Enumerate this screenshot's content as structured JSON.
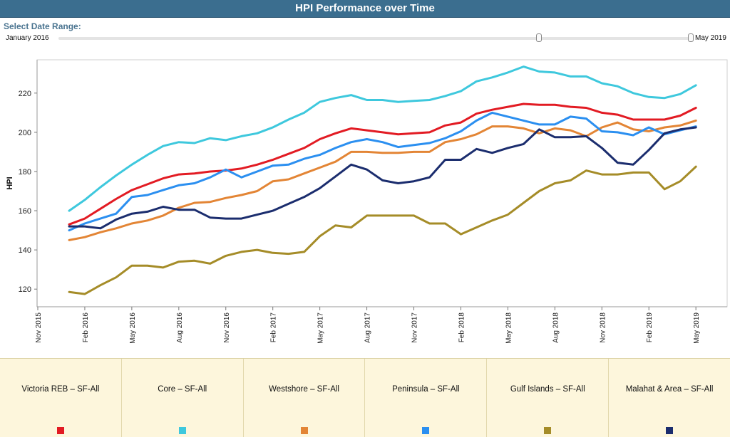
{
  "header": {
    "title": "HPI Performance over Time"
  },
  "range": {
    "label": "Select Date Range:",
    "start": "January 2016",
    "end": "May 2019",
    "selected_start_fraction": 0.76,
    "selected_end_fraction": 1.0
  },
  "chart_data": {
    "type": "line",
    "xlabel": "",
    "ylabel": "HPI",
    "ylim": [
      111,
      237
    ],
    "yticks": [
      120,
      140,
      160,
      180,
      200,
      220
    ],
    "grid": false,
    "xticks": [
      "Nov 2015",
      "Feb 2016",
      "May 2016",
      "Aug 2016",
      "Nov 2016",
      "Feb 2017",
      "May 2017",
      "Aug 2017",
      "Nov 2017",
      "Feb 2018",
      "May 2018",
      "Aug 2018",
      "Nov 2018",
      "Feb 2019",
      "May 2019"
    ],
    "x": [
      "Jan 2016",
      "Feb 2016",
      "Mar 2016",
      "Apr 2016",
      "May 2016",
      "Jun 2016",
      "Jul 2016",
      "Aug 2016",
      "Sep 2016",
      "Oct 2016",
      "Nov 2016",
      "Dec 2016",
      "Jan 2017",
      "Feb 2017",
      "Mar 2017",
      "Apr 2017",
      "May 2017",
      "Jun 2017",
      "Jul 2017",
      "Aug 2017",
      "Sep 2017",
      "Oct 2017",
      "Nov 2017",
      "Dec 2017",
      "Jan 2018",
      "Feb 2018",
      "Mar 2018",
      "Apr 2018",
      "May 2018",
      "Jun 2018",
      "Jul 2018",
      "Aug 2018",
      "Sep 2018",
      "Oct 2018",
      "Nov 2018",
      "Dec 2018",
      "Jan 2019",
      "Feb 2019",
      "Mar 2019",
      "Apr 2019",
      "May 2019"
    ],
    "series": [
      {
        "name": "Victoria REB – SF-All",
        "color": "#e21b23",
        "values": [
          153,
          156,
          161,
          166,
          170.5,
          173.5,
          176.5,
          178.5,
          179,
          180,
          180.5,
          181.5,
          183.5,
          186,
          189,
          192,
          196.5,
          199.5,
          202,
          201,
          200,
          199,
          199.5,
          200,
          203.5,
          205,
          209.5,
          211.5,
          213,
          214.5,
          214,
          214,
          213,
          212.5,
          210,
          209,
          206.5,
          206.5,
          206.5,
          208.5,
          212.5
        ]
      },
      {
        "name": "Core – SF-All",
        "color": "#3ec8dd",
        "values": [
          160,
          165.5,
          172,
          178,
          183.5,
          188.5,
          193,
          195,
          194.5,
          197,
          196,
          198,
          199.5,
          202.5,
          206.5,
          210,
          215.5,
          217.5,
          219,
          216.5,
          216.5,
          215.5,
          216,
          216.5,
          218.5,
          221,
          226,
          228,
          230.5,
          233.5,
          231,
          230.5,
          228.5,
          228.5,
          225,
          223.5,
          220,
          218,
          217.5,
          219.5,
          224
        ]
      },
      {
        "name": "Westshore – SF-All",
        "color": "#e38535",
        "values": [
          145,
          146.5,
          149,
          151,
          153.5,
          155,
          157.5,
          161.5,
          164,
          164.5,
          166.5,
          168,
          170,
          175,
          176,
          179,
          182,
          185,
          190,
          190,
          189.5,
          189.5,
          190,
          190,
          195,
          196.5,
          199,
          203,
          203,
          202,
          199.5,
          202,
          201,
          198,
          202.5,
          205,
          201.5,
          200.5,
          202.5,
          203.5,
          206
        ]
      },
      {
        "name": "Peninsula – SF-All",
        "color": "#2b8ff0",
        "values": [
          150,
          153.5,
          156,
          158.5,
          167,
          168,
          170.5,
          173,
          174,
          177,
          181,
          177,
          180,
          183,
          183.5,
          186.5,
          188.5,
          192,
          195,
          196.5,
          195,
          192.5,
          193.5,
          194.5,
          197,
          200.5,
          206,
          210,
          208,
          206,
          204,
          204,
          208,
          207,
          200.5,
          200,
          198.5,
          202.5,
          199,
          201,
          203
        ]
      },
      {
        "name": "Gulf Islands – SF-All",
        "color": "#a58c28",
        "values": [
          118.5,
          117.5,
          122,
          126,
          132,
          132,
          131,
          134,
          134.5,
          133,
          137,
          139,
          140,
          138.5,
          138,
          139,
          147,
          152.5,
          151.5,
          157.5,
          157.5,
          157.5,
          157.5,
          153.5,
          153.5,
          148,
          151.5,
          155,
          158,
          164,
          170,
          174,
          175.5,
          180.5,
          178.5,
          178.5,
          179.5,
          179.5,
          171,
          175,
          182.5
        ]
      },
      {
        "name": "Malahat & Area – SF-All",
        "color": "#1b2d6e",
        "values": [
          152,
          152,
          151,
          155.5,
          158.5,
          159.5,
          162,
          160.5,
          160.5,
          156.5,
          156,
          156,
          158,
          160,
          163.5,
          167,
          171.5,
          177.5,
          183.5,
          181,
          175.5,
          174,
          175,
          177,
          186,
          186,
          191.5,
          189.5,
          192,
          194,
          201.5,
          197.5,
          197.5,
          198,
          192,
          184.5,
          183.5,
          191,
          199.5,
          201.5,
          202.5
        ]
      }
    ]
  },
  "legend": {
    "items": [
      {
        "label": "Victoria REB – SF-All",
        "color": "#e21b23"
      },
      {
        "label": "Core – SF-All",
        "color": "#3ec8dd"
      },
      {
        "label": "Westshore – SF-All",
        "color": "#e38535"
      },
      {
        "label": "Peninsula – SF-All",
        "color": "#2b8ff0"
      },
      {
        "label": "Gulf Islands – SF-All",
        "color": "#a58c28"
      },
      {
        "label": "Malahat & Area – SF-All",
        "color": "#1b2d6e"
      }
    ]
  }
}
